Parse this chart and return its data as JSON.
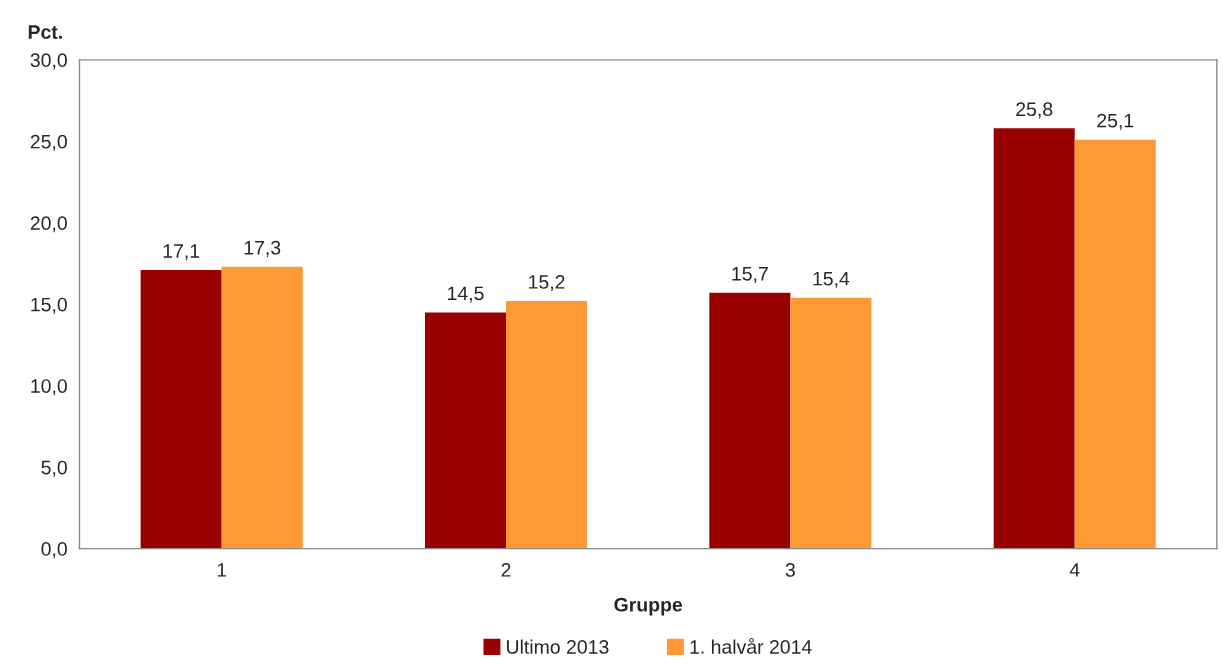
{
  "chart_data": {
    "type": "bar",
    "ylabel": "Pct.",
    "xlabel": "Gruppe",
    "categories": [
      "1",
      "2",
      "3",
      "4"
    ],
    "series": [
      {
        "name": "Ultimo 2013",
        "color": "#990000",
        "values": [
          17.1,
          14.5,
          15.7,
          25.8
        ],
        "value_labels": [
          "17,1",
          "14,5",
          "15,7",
          "25,8"
        ]
      },
      {
        "name": "1. halvår 2014",
        "color": "#ff9933",
        "values": [
          17.3,
          15.2,
          15.4,
          25.1
        ],
        "value_labels": [
          "17,3",
          "15,2",
          "15,4",
          "25,1"
        ]
      }
    ],
    "ylim": [
      0,
      30
    ],
    "yticks": [
      {
        "value": 0,
        "label": "0,0"
      },
      {
        "value": 5,
        "label": "5,0"
      },
      {
        "value": 10,
        "label": "10,0"
      },
      {
        "value": 15,
        "label": "15,0"
      },
      {
        "value": 20,
        "label": "20,0"
      },
      {
        "value": 25,
        "label": "25,0"
      },
      {
        "value": 30,
        "label": "30,0"
      }
    ],
    "grid": false,
    "legend": "bottom"
  }
}
